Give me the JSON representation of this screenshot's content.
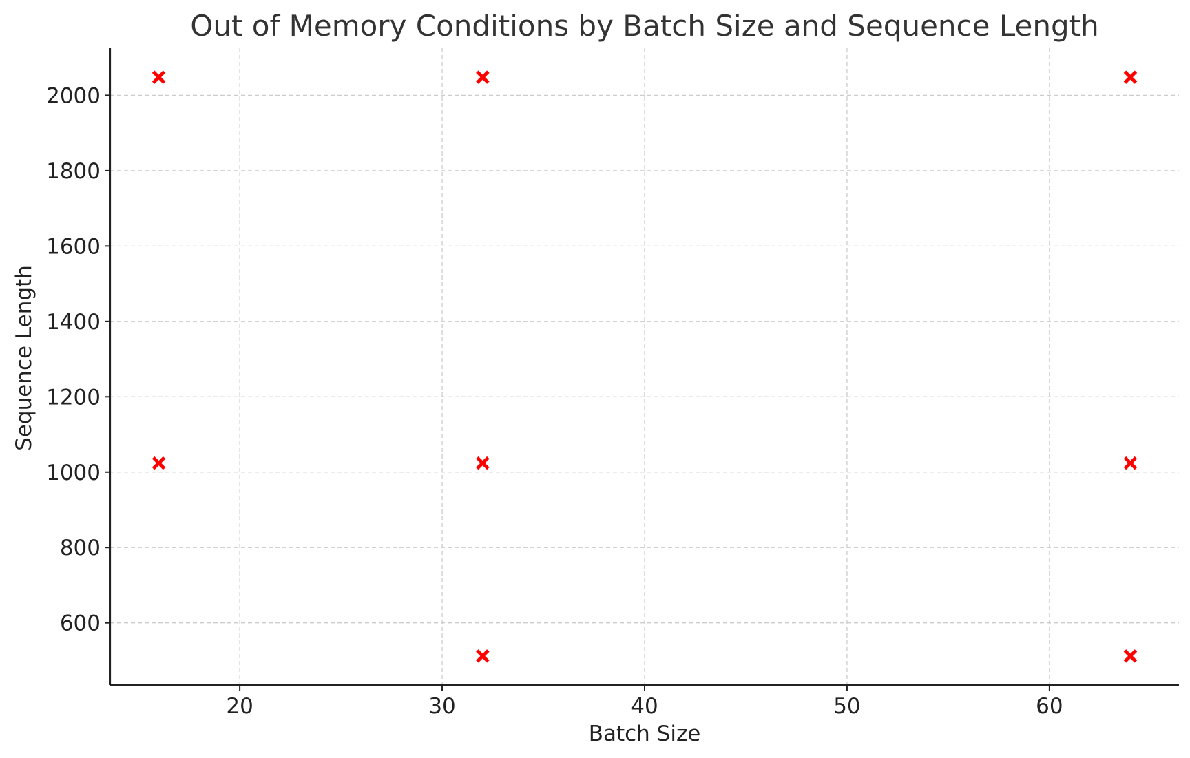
{
  "chart_data": {
    "type": "scatter",
    "title": "Out of Memory Conditions by Batch Size and Sequence Length",
    "xlabel": "Batch Size",
    "ylabel": "Sequence Length",
    "xlim": [
      13.6,
      66.4
    ],
    "ylim": [
      435,
      2125
    ],
    "xticks": [
      20,
      30,
      40,
      50,
      60
    ],
    "yticks": [
      600,
      800,
      1000,
      1200,
      1400,
      1600,
      1800,
      2000
    ],
    "grid": true,
    "marker": "x",
    "marker_color": "#ff0000",
    "series": [
      {
        "points": [
          {
            "x": 16,
            "y": 1024
          },
          {
            "x": 16,
            "y": 2048
          },
          {
            "x": 32,
            "y": 512
          },
          {
            "x": 32,
            "y": 1024
          },
          {
            "x": 32,
            "y": 2048
          },
          {
            "x": 64,
            "y": 512
          },
          {
            "x": 64,
            "y": 1024
          },
          {
            "x": 64,
            "y": 2048
          }
        ]
      }
    ]
  }
}
